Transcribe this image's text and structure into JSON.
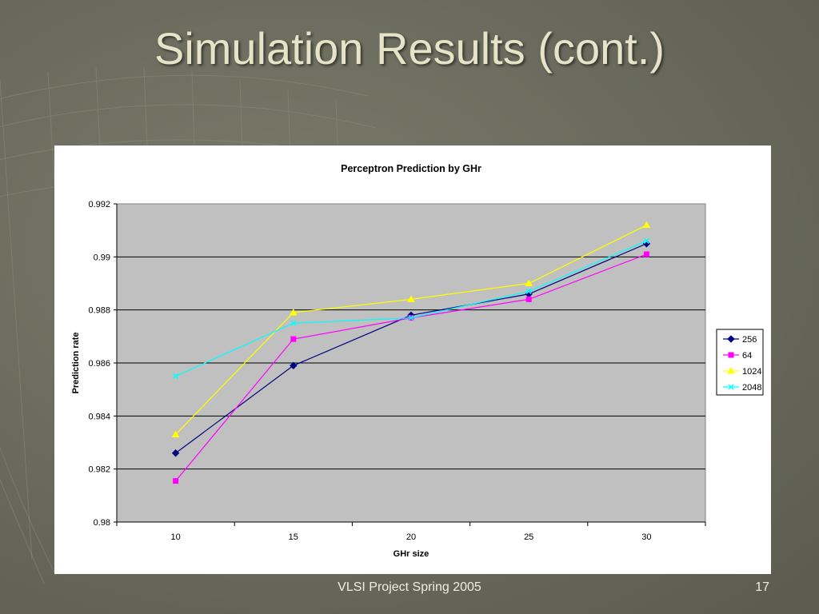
{
  "slide": {
    "title": "Simulation Results (cont.)",
    "footer": "VLSI Project Spring 2005",
    "page_number": "17"
  },
  "colors": {
    "background": "#6c6d5e",
    "title": "#e6e4c8",
    "plot_area": "#c0c0c0"
  },
  "chart_data": {
    "type": "line",
    "title": "Perceptron Prediction by GHr",
    "xlabel": "GHr size",
    "ylabel": "Prediction rate",
    "categories": [
      "10",
      "15",
      "20",
      "25",
      "30"
    ],
    "ylim": [
      0.98,
      0.992
    ],
    "y_ticks": [
      "0.98",
      "0.982",
      "0.984",
      "0.986",
      "0.988",
      "0.99",
      "0.992"
    ],
    "grid": true,
    "legend_position": "right",
    "series": [
      {
        "name": "256",
        "color": "#000080",
        "marker": "diamond",
        "values": [
          0.9826,
          0.9859,
          0.9878,
          0.9886,
          0.9905
        ]
      },
      {
        "name": "64",
        "color": "#ff00ff",
        "marker": "square",
        "values": [
          0.98155,
          0.9869,
          0.9877,
          0.9884,
          0.9901
        ]
      },
      {
        "name": "1024",
        "color": "#ffff00",
        "marker": "triangle",
        "values": [
          0.9833,
          0.9879,
          0.9884,
          0.989,
          0.9912
        ]
      },
      {
        "name": "2048",
        "color": "#00ffff",
        "marker": "x",
        "values": [
          0.9855,
          0.9875,
          0.9877,
          0.9887,
          0.9906
        ]
      }
    ]
  }
}
